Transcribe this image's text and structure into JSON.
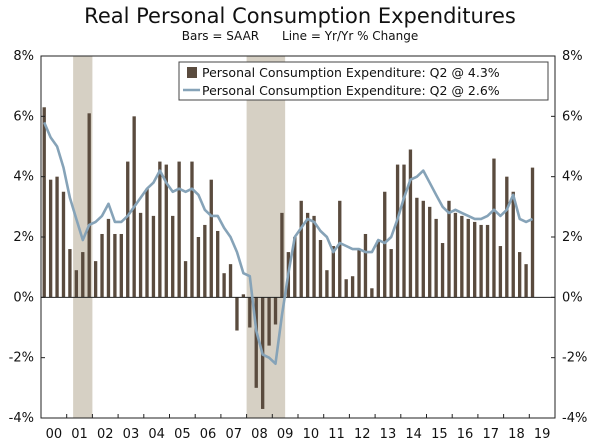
{
  "chart_data": {
    "type": "bar",
    "title": "Real Personal Consumption Expenditures",
    "subtitle": "Bars = SAAR      Line = Yr/Yr % Change",
    "ylim": [
      -4,
      8
    ],
    "y_ticks": [
      "-4%",
      "-2%",
      "0%",
      "2%",
      "4%",
      "6%",
      "8%"
    ],
    "y_tick_values": [
      -4,
      -2,
      0,
      2,
      4,
      6,
      8
    ],
    "x_tick_labels": [
      "00",
      "01",
      "02",
      "03",
      "04",
      "05",
      "06",
      "07",
      "08",
      "09",
      "10",
      "11",
      "12",
      "13",
      "14",
      "15",
      "16",
      "17",
      "18",
      "19"
    ],
    "grid": false,
    "legend_position": "top-right",
    "start_quarter": "2000Q1",
    "colors": {
      "bars": "#5a4b3e",
      "line": "#86a3b8",
      "recession": "#d6d0c4"
    },
    "recessions": [
      {
        "start": "2001Q2",
        "end": "2001Q4"
      },
      {
        "start": "2008Q1",
        "end": "2009Q2"
      }
    ],
    "series": [
      {
        "name": "Personal Consumption Expenditure: Q2 @ 4.3%",
        "kind": "bar",
        "values": [
          6.3,
          3.9,
          4.0,
          3.5,
          1.6,
          0.9,
          1.5,
          6.1,
          1.2,
          2.1,
          2.6,
          2.1,
          2.1,
          4.5,
          6.0,
          2.8,
          3.6,
          2.7,
          4.5,
          4.4,
          2.7,
          4.5,
          1.2,
          4.5,
          2.0,
          2.4,
          3.9,
          2.2,
          0.8,
          1.1,
          -1.1,
          0.1,
          -1.0,
          -3.0,
          -3.7,
          -1.6,
          -0.9,
          2.8,
          1.5,
          2.0,
          3.2,
          2.8,
          2.7,
          1.9,
          0.9,
          1.7,
          3.2,
          0.6,
          0.7,
          1.6,
          2.1,
          0.3,
          1.9,
          3.5,
          1.6,
          4.4,
          4.4,
          4.9,
          3.3,
          3.2,
          3.0,
          2.6,
          1.8,
          3.2,
          2.8,
          2.7,
          2.6,
          2.5,
          2.4,
          2.4,
          4.6,
          1.7,
          4.0,
          3.5,
          1.5,
          1.1,
          4.3
        ]
      },
      {
        "name": "Personal Consumption Expenditure: Q2 @ 2.6%",
        "kind": "line",
        "values": [
          5.8,
          5.3,
          5.0,
          4.3,
          3.3,
          2.6,
          1.9,
          2.4,
          2.5,
          2.7,
          3.1,
          2.5,
          2.5,
          2.7,
          3.0,
          3.3,
          3.6,
          3.8,
          4.2,
          3.8,
          3.5,
          3.6,
          3.5,
          3.6,
          3.4,
          2.9,
          2.7,
          2.7,
          2.3,
          2.0,
          1.5,
          0.8,
          0.7,
          -1.1,
          -1.9,
          -2.0,
          -2.2,
          -0.6,
          0.8,
          2.0,
          2.3,
          2.6,
          2.5,
          2.2,
          2.0,
          1.5,
          1.8,
          1.7,
          1.6,
          1.6,
          1.5,
          1.5,
          1.9,
          1.8,
          2.0,
          2.6,
          3.3,
          3.9,
          4.0,
          4.2,
          3.8,
          3.4,
          3.0,
          2.8,
          2.9,
          2.8,
          2.7,
          2.6,
          2.6,
          2.7,
          2.9,
          2.7,
          2.9,
          3.4,
          2.6,
          2.5,
          2.6
        ]
      }
    ]
  }
}
